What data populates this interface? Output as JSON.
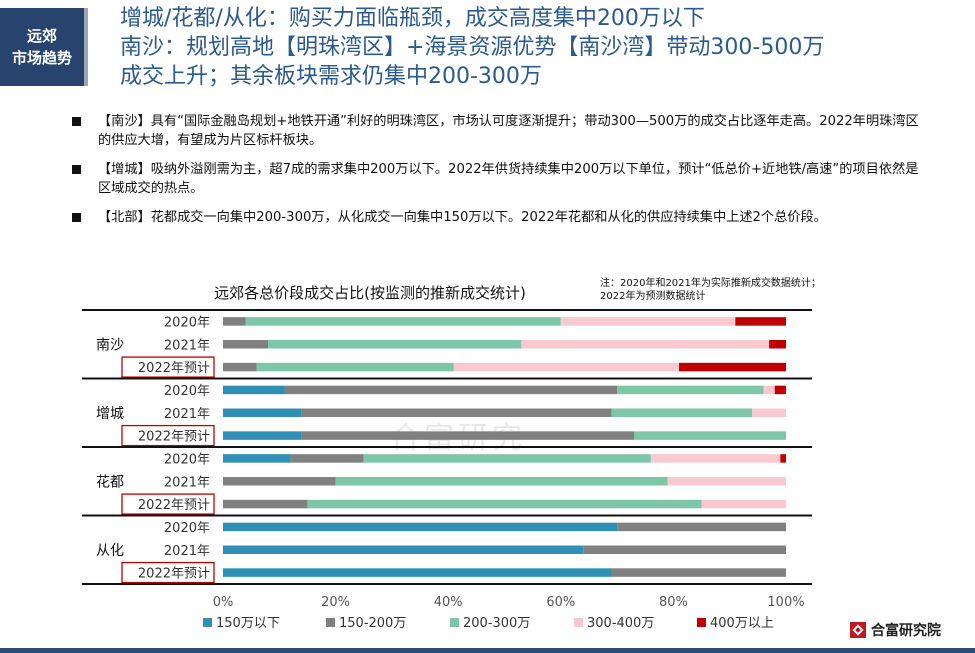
{
  "header": {
    "badge_line1": "远郊",
    "badge_line2": "市场趋势",
    "title_line1": "增城/花都/从化：购买力面临瓶颈，成交高度集中200万以下",
    "title_line2": "南沙：规划高地【明珠湾区】+海景资源优势【南沙湾】带动300-500万",
    "title_line3": "成交上升；其余板块需求仍集中200-300万"
  },
  "bullets": [
    "【南沙】具有“国际金融岛规划+地铁开通”利好的明珠湾区，市场认可度逐渐提升；带动300—500万的成交占比逐年走高。2022年明珠湾区的供应大增，有望成为片区标杆板块。",
    "【增城】吸纳外溢刚需为主，超7成的需求集中200万以下。2022年供货持续集中200万以下单位，预计“低总价+近地铁/高速”的项目依然是区域成交的热点。",
    "【北部】花都成交一向集中200-300万，从化成交一向集中150万以下。2022年花都和从化的供应持续集中上述2个总价段。"
  ],
  "chart_data": {
    "type": "bar",
    "orientation": "horizontal",
    "stacked": true,
    "title": "远郊各总价段成交占比(按监测的推新成交统计)",
    "note_line1": "注：2020年和2021年为实际推新成交数据统计；",
    "note_line2": "2022年为预测数据统计",
    "watermark": "合富研究",
    "groups": [
      {
        "name": "南沙",
        "rows": [
          "2020年",
          "2021年",
          "2022年预计"
        ]
      },
      {
        "name": "增城",
        "rows": [
          "2020年",
          "2021年",
          "2022年预计"
        ]
      },
      {
        "name": "花都",
        "rows": [
          "2020年",
          "2021年",
          "2022年预计"
        ]
      },
      {
        "name": "从化",
        "rows": [
          "2020年",
          "2021年",
          "2022年预计"
        ]
      }
    ],
    "highlighted_row": "2022年预计",
    "series": [
      {
        "name": "150万以下",
        "color": "#2f8fb5",
        "values": [
          0,
          0,
          0,
          11,
          14,
          14,
          12,
          0,
          0,
          70,
          64,
          69
        ]
      },
      {
        "name": "150-200万",
        "color": "#808080",
        "values": [
          4,
          8,
          6,
          59,
          55,
          59,
          13,
          20,
          15,
          30,
          36,
          31
        ]
      },
      {
        "name": "200-300万",
        "color": "#7dc6a8",
        "values": [
          56,
          45,
          35,
          26,
          25,
          27,
          51,
          59,
          70,
          0,
          0,
          0
        ]
      },
      {
        "name": "300-400万",
        "color": "#f9c9cf",
        "values": [
          31,
          44,
          40,
          2,
          6,
          0,
          23,
          21,
          15,
          0,
          0,
          0
        ]
      },
      {
        "name": "400万以上",
        "color": "#c00000",
        "values": [
          9,
          3,
          19,
          2,
          0,
          0,
          1,
          0,
          0,
          0,
          0,
          0
        ]
      }
    ],
    "xlim": [
      0,
      100
    ],
    "x_ticks": [
      "0%",
      "20%",
      "40%",
      "60%",
      "80%",
      "100%"
    ],
    "legend_position": "bottom"
  },
  "footer": {
    "logo_text": "合富研究院"
  }
}
